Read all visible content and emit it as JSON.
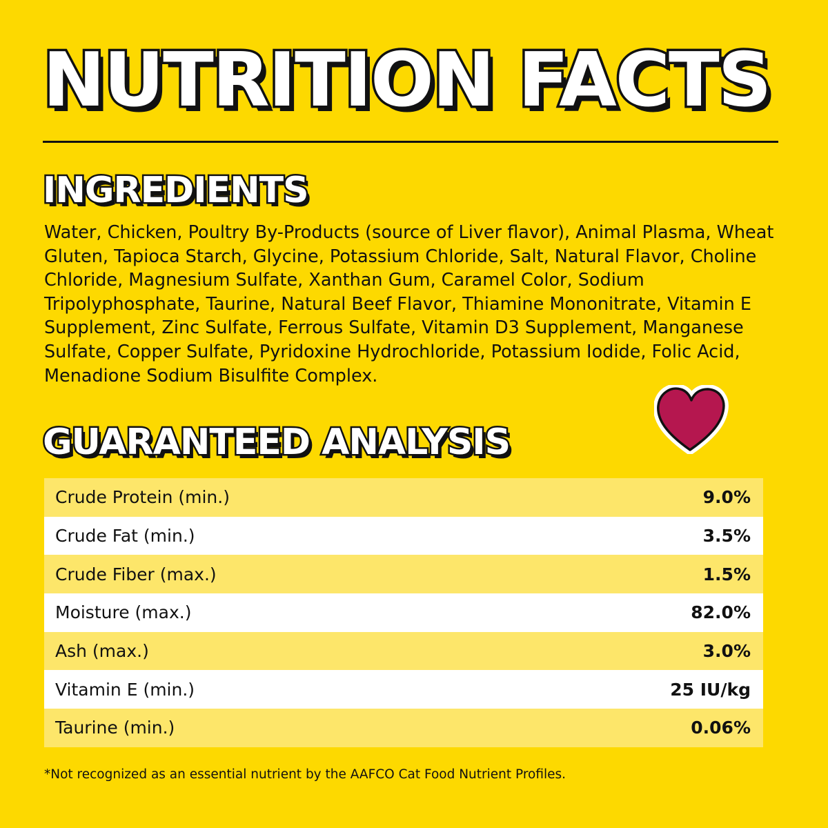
{
  "title": "NUTRITION FACTS",
  "ingredients": {
    "heading": "INGREDIENTS",
    "text": "Water, Chicken, Poultry By-Products (source of Liver flavor), Animal Plasma, Wheat Gluten, Tapioca Starch, Glycine, Potassium Chloride, Salt, Natural Flavor, Choline Chloride, Magnesium Sulfate, Xanthan Gum, Caramel Color, Sodium Tripolyphosphate, Taurine, Natural Beef Flavor, Thiamine Mononitrate, Vitamin E Supplement, Zinc Sulfate, Ferrous Sulfate, Vitamin D3 Supplement, Manganese Sulfate, Copper Sulfate, Pyridoxine Hydrochloride, Potassium Iodide, Folic Acid, Menadione Sodium Bisulfite Complex."
  },
  "analysis": {
    "heading": "GUARANTEED ANALYSIS",
    "rows": [
      {
        "name": "Crude Protein (min.)",
        "value": "9.0%"
      },
      {
        "name": "Crude Fat (min.)",
        "value": "3.5%"
      },
      {
        "name": "Crude Fiber (max.)",
        "value": "1.5%"
      },
      {
        "name": "Moisture (max.)",
        "value": "82.0%"
      },
      {
        "name": "Ash (max.)",
        "value": "3.0%"
      },
      {
        "name": "Vitamin E (min.)",
        "value": "25 IU/kg"
      },
      {
        "name": "Taurine (min.)",
        "value": "0.06%"
      }
    ]
  },
  "footnote": "*Not recognized as an essential nutrient by the AAFCO Cat Food Nutrient Profiles.",
  "decoration": {
    "icon": "heart-icon"
  },
  "colors": {
    "background": "#fdd900",
    "row_odd": "#fde66a",
    "row_even": "#ffffff",
    "heart": "#b5174f",
    "text": "#111111"
  }
}
